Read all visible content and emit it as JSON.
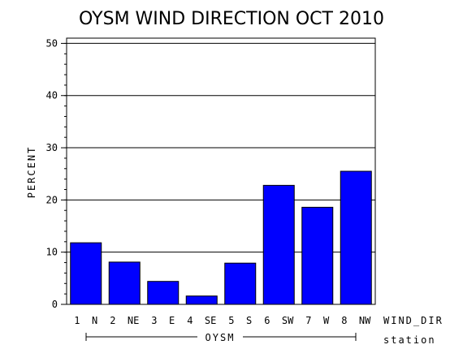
{
  "chart_data": {
    "type": "bar",
    "title": "OYSM WIND DIRECTION OCT 2010",
    "ylabel": "PERCENT",
    "xlabel": "WIND_DIR",
    "group_label": "OYSM",
    "group_axis_label": "station",
    "categories": [
      "1 N",
      "2 NE",
      "3 E",
      "4 SE",
      "5 S",
      "6 SW",
      "7 W",
      "8 NW"
    ],
    "values": [
      11.8,
      8.1,
      4.4,
      1.6,
      7.9,
      22.8,
      18.6,
      25.5
    ],
    "ylim": [
      0,
      51
    ],
    "yticks": [
      "0",
      "10",
      "20",
      "30",
      "40",
      "50"
    ],
    "grid": true,
    "bar_color": "#0000ff"
  }
}
